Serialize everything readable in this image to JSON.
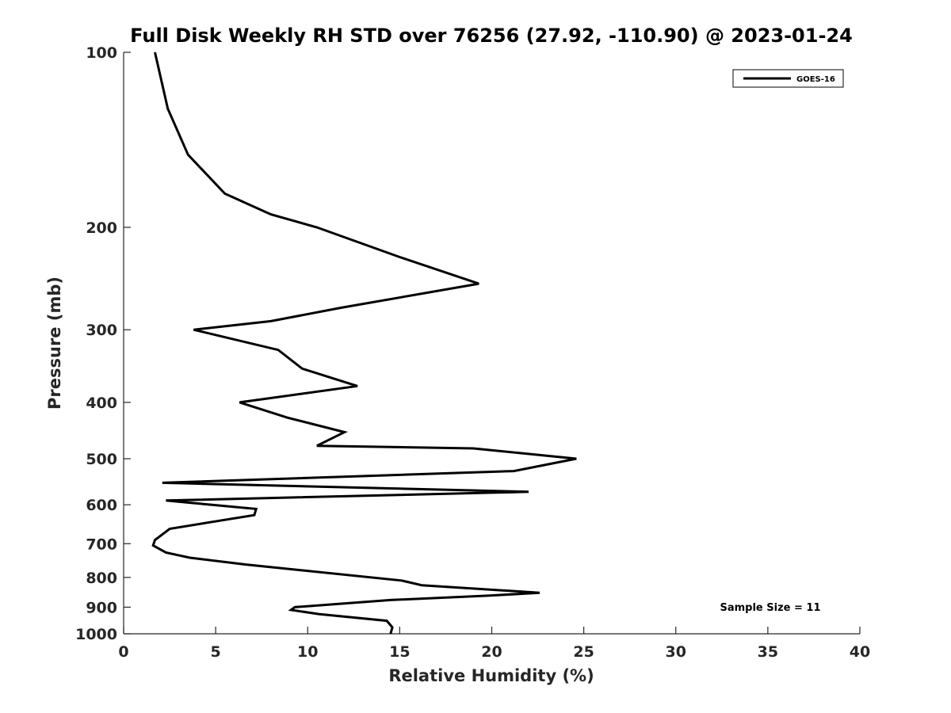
{
  "chart_data": {
    "type": "line",
    "title": "Full Disk Weekly RH STD over 76256 (27.92, -110.90) @ 2023-01-24",
    "xlabel": "Relative Humidity (%)",
    "ylabel": "Pressure (mb)",
    "xlim": [
      0,
      40
    ],
    "ylim": [
      1000,
      100
    ],
    "yscale": "log",
    "xticks": [
      0,
      5,
      10,
      15,
      20,
      25,
      30,
      35,
      40
    ],
    "yticks": [
      100,
      200,
      300,
      400,
      500,
      600,
      700,
      800,
      900,
      1000
    ],
    "legend_position": "top-right",
    "grid": false,
    "annotation": "Sample Size = 11",
    "series": [
      {
        "name": "GOES-16",
        "color": "#000000",
        "points": [
          [
            1.7,
            100
          ],
          [
            2.4,
            125
          ],
          [
            3.5,
            150
          ],
          [
            5.5,
            175
          ],
          [
            8.0,
            190
          ],
          [
            10.5,
            200
          ],
          [
            15.0,
            225
          ],
          [
            19.3,
            250
          ],
          [
            11.8,
            275
          ],
          [
            8.0,
            290
          ],
          [
            3.8,
            300
          ],
          [
            8.4,
            325
          ],
          [
            9.7,
            350
          ],
          [
            12.7,
            375
          ],
          [
            6.3,
            400
          ],
          [
            8.9,
            425
          ],
          [
            12.0,
            450
          ],
          [
            10.5,
            475
          ],
          [
            19.0,
            480
          ],
          [
            24.6,
            500
          ],
          [
            21.2,
            525
          ],
          [
            2.1,
            550
          ],
          [
            22.0,
            570
          ],
          [
            2.3,
            590
          ],
          [
            7.2,
            610
          ],
          [
            7.1,
            625
          ],
          [
            2.5,
            660
          ],
          [
            1.7,
            690
          ],
          [
            1.6,
            705
          ],
          [
            2.3,
            725
          ],
          [
            3.6,
            740
          ],
          [
            6.6,
            760
          ],
          [
            15.1,
            810
          ],
          [
            16.2,
            825
          ],
          [
            22.6,
            850
          ],
          [
            19.8,
            860
          ],
          [
            14.5,
            875
          ],
          [
            9.3,
            900
          ],
          [
            9.1,
            910
          ],
          [
            10.6,
            925
          ],
          [
            14.3,
            950
          ],
          [
            14.6,
            975
          ],
          [
            14.5,
            1000
          ]
        ]
      }
    ]
  }
}
